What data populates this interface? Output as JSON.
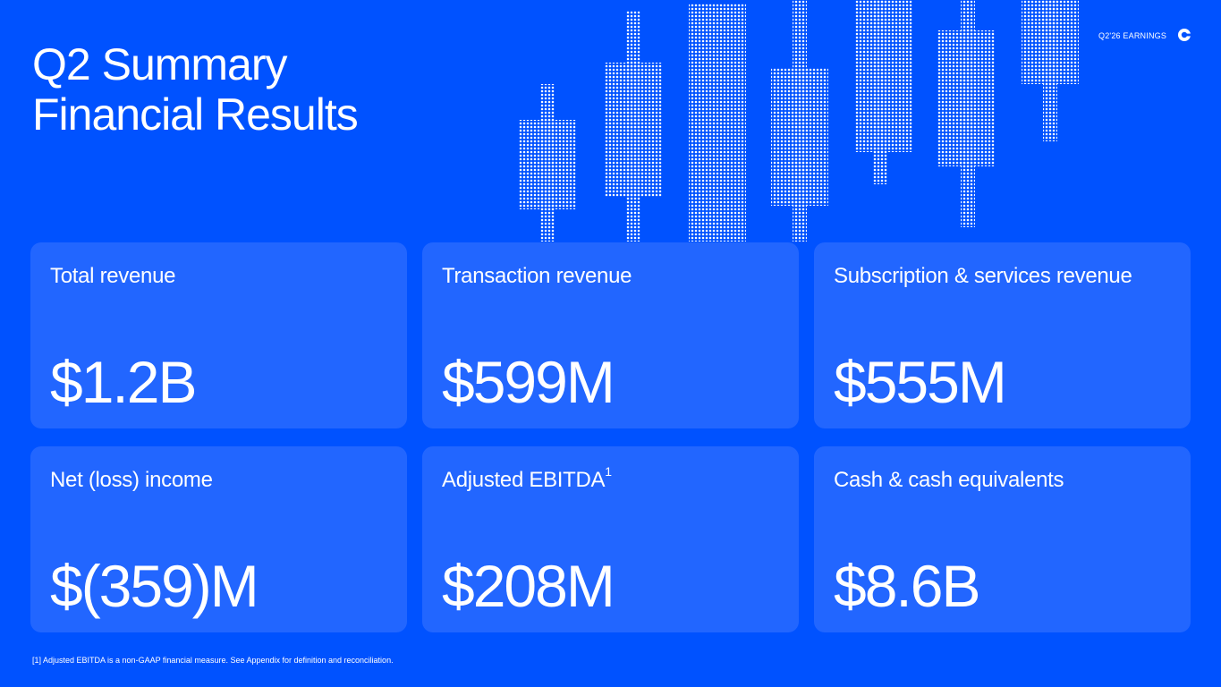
{
  "header": {
    "title_line1": "Q2 Summary",
    "title_line2": "Financial Results",
    "tag": "Q2'26 EARNINGS",
    "logo_icon": "coinbase-c-icon"
  },
  "colors": {
    "background": "#0052FF",
    "card": "#2266FF",
    "text": "#FFFFFF"
  },
  "metrics": [
    {
      "label": "Total revenue",
      "value": "$1.2B"
    },
    {
      "label": "Transaction revenue",
      "value": "$599M"
    },
    {
      "label": "Subscription & services revenue",
      "value": "$555M"
    },
    {
      "label": "Net (loss) income",
      "value": "$(359)M"
    },
    {
      "label": "Adjusted EBITDA",
      "label_sup": "1",
      "value": "$208M"
    },
    {
      "label": "Cash & cash equivalents",
      "value": "$8.6B"
    }
  ],
  "footnote": "[1] Adjusted EBITDA is a non-GAAP financial measure. See Appendix for definition and reconciliation."
}
